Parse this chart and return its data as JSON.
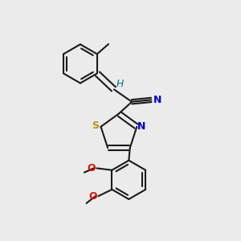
{
  "background_color": "#ebebeb",
  "bond_color": "#1a1a1a",
  "bond_width": 1.5,
  "dbo": 0.012,
  "figsize": [
    3.0,
    3.0
  ],
  "dpi": 100,
  "colors": {
    "N": "#0000cc",
    "S": "#b8960c",
    "O": "#dd1100",
    "H": "#007777",
    "C": "#1a1a1a"
  },
  "fs": 9.0,
  "fs_small": 8.0
}
